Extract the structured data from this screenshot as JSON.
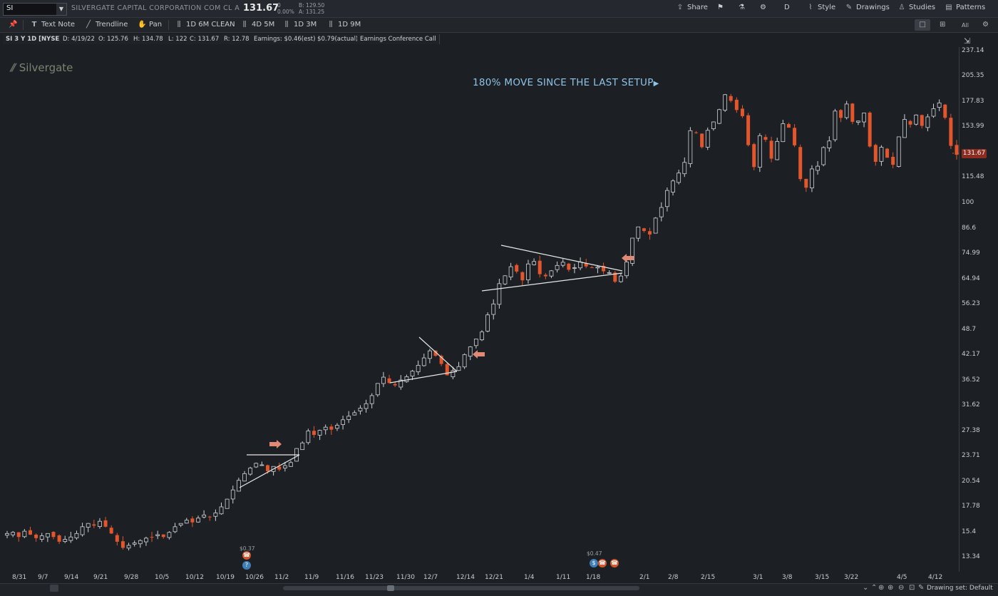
{
  "header": {
    "symbol": "SI",
    "company": "SILVERGATE CAPITAL CORPORATION COM CL A",
    "last_price": "131.67",
    "change_abs": "0",
    "change_pct": "0.00%",
    "bid": "B: 129.50",
    "ask": "A: 131.25",
    "share_label": "Share",
    "period_label": "D",
    "style_label": "Style",
    "drawings_label": "Drawings",
    "studies_label": "Studies",
    "patterns_label": "Patterns"
  },
  "toolbar": {
    "text_note": "Text Note",
    "trendline": "Trendline",
    "pan": "Pan",
    "presets": [
      "1D 6M CLEAN",
      "4D 5M",
      "1D 3M",
      "1D 9M"
    ],
    "all_label": "All"
  },
  "info": {
    "title": "SI 3 Y 1D [NYSE]",
    "date": "D: 4/19/22",
    "open": "O: 125.76",
    "high": "H: 134.78",
    "low": "L: 122",
    "close": "C: 131.67",
    "range": "R: 12.78",
    "earnings": "Earnings: $0.46(est) $0.79(actual)",
    "event": "Earnings Conference Call"
  },
  "watermark": "Silvergate",
  "annotation": "180% MOVE SINCE THE LAST SETUP",
  "price_tag": "131.67",
  "earn_labels": [
    "$0.37",
    "$0.47"
  ],
  "drawing_set": "Drawing set: Default",
  "colors": {
    "up": "#cfd3d6",
    "down": "#e3552b",
    "annot": "#8fc4e8",
    "arrow": "#e08a76"
  },
  "chart_data": {
    "type": "candlestick",
    "title": "SI 3 Y 1D [NYSE]",
    "y_scale": "log",
    "y_ticks": [
      237.14,
      205.35,
      177.83,
      153.99,
      131.67,
      115.48,
      100,
      86.6,
      74.99,
      64.94,
      56.23,
      48.7,
      42.17,
      36.52,
      31.62,
      27.38,
      23.71,
      20.54,
      17.78,
      15.4,
      13.34
    ],
    "x_ticks": [
      "8/31",
      "9/7",
      "9/14",
      "9/21",
      "9/28",
      "10/5",
      "10/12",
      "10/19",
      "10/26",
      "11/2",
      "11/9",
      "11/16",
      "11/23",
      "11/30",
      "12/7",
      "12/14",
      "12/21",
      "1/4",
      "1/11",
      "1/18",
      "2/1",
      "2/8",
      "2/15",
      "3/1",
      "3/8",
      "3/15",
      "3/22",
      "4/5",
      "4/12"
    ],
    "last_bar": {
      "date": "4/19/22",
      "open": 125.76,
      "high": 134.78,
      "low": 122,
      "close": 131.67
    },
    "closes": [
      15.3,
      15.4,
      15.0,
      15.5,
      15.2,
      14.9,
      15.1,
      15.3,
      15.0,
      14.6,
      14.8,
      15.0,
      15.3,
      15.9,
      16.2,
      16.0,
      16.4,
      15.9,
      15.3,
      14.6,
      14.1,
      14.3,
      14.5,
      14.7,
      14.9,
      15.0,
      15.2,
      15.0,
      15.4,
      15.9,
      16.2,
      16.5,
      16.3,
      16.7,
      17.0,
      16.8,
      17.2,
      17.8,
      18.6,
      19.6,
      20.7,
      21.5,
      22.2,
      22.8,
      22.6,
      21.8,
      22.4,
      22.0,
      22.5,
      22.9,
      24.8,
      25.6,
      27.4,
      26.8,
      27.5,
      28.0,
      27.6,
      28.3,
      29.2,
      29.8,
      30.4,
      31.2,
      32.0,
      33.5,
      35.9,
      37.2,
      36.0,
      35.5,
      36.6,
      37.3,
      38.5,
      39.8,
      41.5,
      43.2,
      42.0,
      40.1,
      37.6,
      38.6,
      39.5,
      42.3,
      44.2,
      46.2,
      48.1,
      53.0,
      56.4,
      63.3,
      66.2,
      69.7,
      67.8,
      64.5,
      70.8,
      71.8,
      66.8,
      66.0,
      68.1,
      70.2,
      71.5,
      68.5,
      69.3,
      71.6,
      69.8,
      69.4,
      69.6,
      67.9,
      67.4,
      64.0,
      66.1,
      71.6,
      82.0,
      87.4,
      85.4,
      83.7,
      91.9,
      97.6,
      107.5,
      113.5,
      118.7,
      126.1,
      151.0,
      149.0,
      137.5,
      151.3,
      158.7,
      170.2,
      185.3,
      178.9,
      169.8,
      164.0,
      139.1,
      122.8,
      146.8,
      143.4,
      128.8,
      142.0,
      157.1,
      153.6,
      138.9,
      114.7,
      109.2,
      121.5,
      123.4,
      137.2,
      142.4,
      168.8,
      162.4,
      175.7,
      158.8,
      159.5,
      166.9,
      138.0,
      126.5,
      137.4,
      129.5,
      124.4,
      145.8,
      161.0,
      156.3,
      165.1,
      155.2,
      163.3,
      171.1,
      176.8,
      162.5,
      138.5,
      131.67
    ]
  }
}
